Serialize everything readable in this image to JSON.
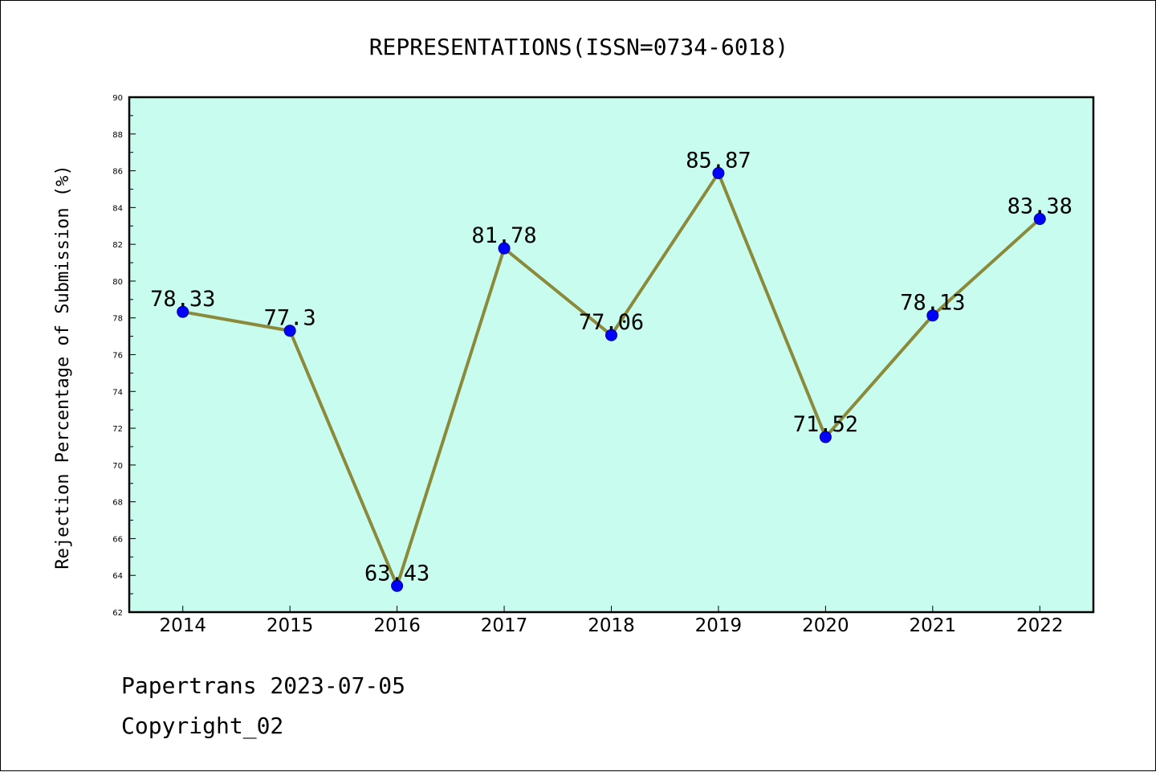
{
  "chart_data": {
    "type": "line",
    "title": "REPRESENTATIONS(ISSN=0734-6018)",
    "xlabel": "",
    "ylabel": "Rejection Percentage of Submission (%)",
    "x": [
      "2014",
      "2015",
      "2016",
      "2017",
      "2018",
      "2019",
      "2020",
      "2021",
      "2022"
    ],
    "series": [
      {
        "values": [
          78.33,
          77.3,
          63.43,
          81.78,
          77.06,
          85.87,
          71.52,
          78.13,
          83.38
        ],
        "labels": [
          "78.33",
          "77.3",
          "63.43",
          "81.78",
          "77.06",
          "85.87",
          "71.52",
          "78.13",
          "83.38"
        ],
        "line_color": "#8b8a3a",
        "marker_color": "#0000ff"
      }
    ],
    "ylim": [
      62,
      90
    ],
    "yticks": [
      "62",
      "64",
      "66",
      "68",
      "70",
      "72",
      "74",
      "76",
      "78",
      "80",
      "82",
      "84",
      "86",
      "88",
      "90"
    ],
    "plot_background": "#c8fcee",
    "grid": false
  },
  "footer": {
    "line1": "Papertrans 2023-07-05",
    "line2": "Copyright_02"
  }
}
